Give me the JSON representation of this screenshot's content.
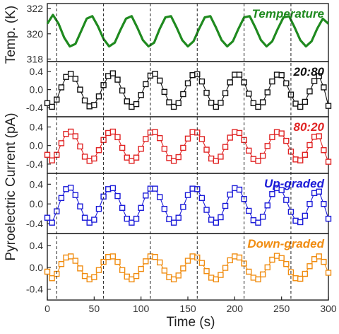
{
  "chart_data": {
    "type": "line",
    "x_range": [
      0,
      300
    ],
    "x_ticks": [
      0,
      50,
      100,
      150,
      200,
      250,
      300
    ],
    "xlabel": "Time (s)",
    "ylabel_top": "Temp. (K)",
    "ylabel_bottom": "Pyroelectric Current (pA)",
    "reference_lines_x": [
      10,
      60,
      110,
      160,
      210,
      260
    ],
    "grid": false,
    "panels": [
      {
        "name": "Temperature",
        "color": "#1f8a1f",
        "marker": "line",
        "ylim": [
          317.8,
          322.4
        ],
        "yticks": [
          318,
          320,
          322
        ],
        "series": {
          "x": [
            0,
            6,
            12,
            18,
            24,
            30,
            36,
            42,
            48,
            54,
            60,
            66,
            72,
            78,
            84,
            90,
            96,
            102,
            108,
            114,
            120,
            126,
            132,
            138,
            144,
            150,
            156,
            162,
            168,
            174,
            180,
            186,
            192,
            198,
            204,
            210,
            216,
            222,
            228,
            234,
            240,
            246,
            252,
            258,
            264,
            270,
            276,
            282,
            288,
            294,
            300
          ],
          "values": [
            320.8,
            321.5,
            320.8,
            319.7,
            319.0,
            319.2,
            320.2,
            321.2,
            321.4,
            320.6,
            319.6,
            319.0,
            319.3,
            320.3,
            321.2,
            321.4,
            320.5,
            319.5,
            319.0,
            319.3,
            320.4,
            321.3,
            321.4,
            320.5,
            319.5,
            319.0,
            319.4,
            320.4,
            321.3,
            321.4,
            320.5,
            319.5,
            319.0,
            319.4,
            320.4,
            321.3,
            321.4,
            320.5,
            319.5,
            319.0,
            319.4,
            320.4,
            321.3,
            321.4,
            320.5,
            319.5,
            319.0,
            319.4,
            320.4,
            321.2,
            320.8
          ]
        }
      },
      {
        "name": "20:80",
        "color": "#111111",
        "marker": "square",
        "ylim": [
          -0.6,
          0.62
        ],
        "yticks": [
          -0.4,
          0.0,
          0.4
        ],
        "series": {
          "x": [
            0,
            5,
            10,
            15,
            20,
            25,
            30,
            35,
            40,
            45,
            50,
            55,
            60,
            65,
            70,
            75,
            80,
            85,
            90,
            95,
            100,
            105,
            110,
            115,
            120,
            125,
            130,
            135,
            140,
            145,
            150,
            155,
            160,
            165,
            170,
            175,
            180,
            185,
            190,
            195,
            200,
            205,
            210,
            215,
            220,
            225,
            230,
            235,
            240,
            245,
            250,
            255,
            260,
            265,
            270,
            275,
            280,
            285,
            290,
            295,
            300
          ],
          "values": [
            -0.3,
            -0.38,
            -0.22,
            0.05,
            0.28,
            0.35,
            0.24,
            0.0,
            -0.24,
            -0.37,
            -0.34,
            -0.15,
            0.1,
            0.3,
            0.36,
            0.22,
            -0.02,
            -0.26,
            -0.38,
            -0.32,
            -0.12,
            0.12,
            0.31,
            0.35,
            0.2,
            -0.05,
            -0.28,
            -0.38,
            -0.3,
            -0.1,
            0.14,
            0.32,
            0.34,
            0.18,
            -0.07,
            -0.29,
            -0.38,
            -0.29,
            -0.08,
            0.16,
            0.33,
            0.33,
            0.16,
            -0.09,
            -0.3,
            -0.38,
            -0.28,
            -0.06,
            0.18,
            0.33,
            0.32,
            0.14,
            -0.11,
            -0.31,
            -0.38,
            -0.27,
            -0.04,
            0.19,
            0.3,
            0.05,
            -0.36
          ]
        }
      },
      {
        "name": "80:20",
        "color": "#e02424",
        "marker": "square",
        "ylim": [
          -0.6,
          0.62
        ],
        "yticks": [
          -0.4,
          0.0,
          0.4
        ],
        "series": {
          "x": [
            0,
            5,
            10,
            15,
            20,
            25,
            30,
            35,
            40,
            45,
            50,
            55,
            60,
            65,
            70,
            75,
            80,
            85,
            90,
            95,
            100,
            105,
            110,
            115,
            120,
            125,
            130,
            135,
            140,
            145,
            150,
            155,
            160,
            165,
            170,
            175,
            180,
            185,
            190,
            195,
            200,
            205,
            210,
            215,
            220,
            225,
            230,
            235,
            240,
            245,
            250,
            255,
            260,
            265,
            270,
            275,
            280,
            285,
            290,
            295,
            300
          ],
          "values": [
            -0.2,
            -0.32,
            -0.2,
            0.05,
            0.25,
            0.3,
            0.2,
            -0.02,
            -0.24,
            -0.33,
            -0.28,
            -0.1,
            0.12,
            0.27,
            0.3,
            0.18,
            -0.05,
            -0.26,
            -0.33,
            -0.26,
            -0.07,
            0.14,
            0.28,
            0.29,
            0.16,
            -0.07,
            -0.27,
            -0.33,
            -0.25,
            -0.05,
            0.15,
            0.29,
            0.28,
            0.14,
            -0.09,
            -0.28,
            -0.33,
            -0.24,
            -0.03,
            0.17,
            0.29,
            0.27,
            0.12,
            -0.11,
            -0.29,
            -0.33,
            -0.22,
            -0.01,
            0.18,
            0.29,
            0.26,
            0.1,
            -0.13,
            -0.3,
            -0.32,
            -0.2,
            0.01,
            0.19,
            0.2,
            -0.1,
            -0.35
          ]
        }
      },
      {
        "name": "Up-graded",
        "color": "#1a1ad8",
        "marker": "square",
        "ylim": [
          -0.6,
          0.62
        ],
        "yticks": [
          -0.4,
          0.0,
          0.4
        ],
        "series": {
          "x": [
            0,
            5,
            10,
            15,
            20,
            25,
            30,
            35,
            40,
            45,
            50,
            55,
            60,
            65,
            70,
            75,
            80,
            85,
            90,
            95,
            100,
            105,
            110,
            115,
            120,
            125,
            130,
            135,
            140,
            145,
            150,
            155,
            160,
            165,
            170,
            175,
            180,
            185,
            190,
            195,
            200,
            205,
            210,
            215,
            220,
            225,
            230,
            235,
            240,
            245,
            250,
            255,
            260,
            265,
            270,
            275,
            280,
            285,
            290,
            295,
            300
          ],
          "values": [
            -0.28,
            -0.38,
            -0.15,
            0.12,
            0.3,
            0.33,
            0.18,
            -0.05,
            -0.28,
            -0.38,
            -0.32,
            -0.1,
            0.15,
            0.3,
            0.32,
            0.16,
            -0.08,
            -0.3,
            -0.38,
            -0.3,
            -0.08,
            0.17,
            0.31,
            0.31,
            0.14,
            -0.1,
            -0.31,
            -0.38,
            -0.28,
            -0.06,
            0.18,
            0.31,
            0.3,
            0.12,
            -0.12,
            -0.32,
            -0.38,
            -0.27,
            -0.04,
            0.19,
            0.32,
            0.29,
            0.1,
            -0.14,
            -0.33,
            -0.38,
            -0.26,
            -0.03,
            0.2,
            0.32,
            0.28,
            0.08,
            -0.16,
            -0.34,
            -0.37,
            -0.24,
            0.0,
            0.22,
            0.25,
            0.0,
            -0.3
          ]
        }
      },
      {
        "name": "Down-graded",
        "color": "#f08c10",
        "marker": "square",
        "ylim": [
          -0.6,
          0.62
        ],
        "yticks": [
          -0.4,
          0.0,
          0.4
        ],
        "series": {
          "x": [
            0,
            5,
            10,
            15,
            20,
            25,
            30,
            35,
            40,
            45,
            50,
            55,
            60,
            65,
            70,
            75,
            80,
            85,
            90,
            95,
            100,
            105,
            110,
            115,
            120,
            125,
            130,
            135,
            140,
            145,
            150,
            155,
            160,
            165,
            170,
            175,
            180,
            185,
            190,
            195,
            200,
            205,
            210,
            215,
            220,
            225,
            230,
            235,
            240,
            245,
            250,
            255,
            260,
            265,
            270,
            275,
            280,
            285,
            290,
            295,
            300
          ],
          "values": [
            -0.08,
            -0.2,
            -0.12,
            0.06,
            0.18,
            0.2,
            0.12,
            -0.02,
            -0.16,
            -0.22,
            -0.18,
            -0.05,
            0.1,
            0.19,
            0.2,
            0.1,
            -0.05,
            -0.17,
            -0.22,
            -0.16,
            -0.03,
            0.11,
            0.2,
            0.19,
            0.09,
            -0.06,
            -0.18,
            -0.22,
            -0.15,
            -0.02,
            0.12,
            0.2,
            0.18,
            0.08,
            -0.07,
            -0.19,
            -0.22,
            -0.14,
            -0.01,
            0.13,
            0.2,
            0.18,
            0.07,
            -0.08,
            -0.19,
            -0.22,
            -0.13,
            0.0,
            0.14,
            0.21,
            0.17,
            0.06,
            -0.09,
            -0.2,
            -0.21,
            -0.12,
            0.02,
            0.15,
            0.2,
            0.1,
            -0.1
          ]
        }
      }
    ]
  }
}
